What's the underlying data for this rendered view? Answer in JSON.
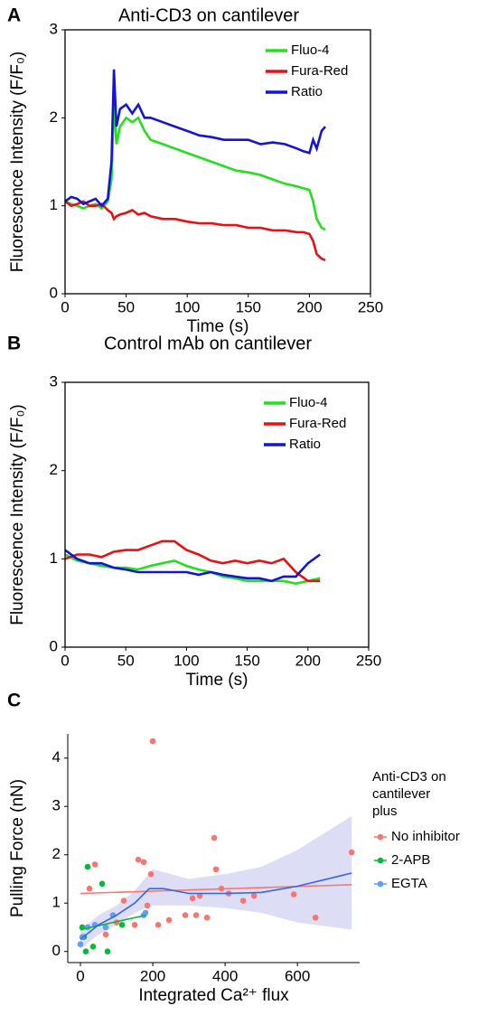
{
  "chart_data": [
    {
      "type": "line",
      "panel": "A",
      "title": "Anti-CD3 on cantilever",
      "xlabel": "Time (s)",
      "ylabel": "Fluorescence Intensity (F/F₀)",
      "xlim": [
        0,
        250
      ],
      "ylim": [
        0,
        3
      ],
      "xticks": [
        0,
        50,
        100,
        150,
        200,
        250
      ],
      "yticks": [
        0,
        1,
        2,
        3
      ],
      "legend": "upper right",
      "x": [
        0,
        5,
        10,
        15,
        20,
        25,
        30,
        35,
        38,
        40,
        42,
        45,
        50,
        55,
        60,
        65,
        70,
        80,
        90,
        100,
        110,
        120,
        130,
        140,
        150,
        160,
        170,
        180,
        190,
        195,
        200,
        203,
        206,
        210,
        213
      ],
      "series": [
        {
          "name": "Fluo-4",
          "color": "#22e01e",
          "values": [
            1.05,
            1.02,
            1.0,
            0.97,
            1.0,
            1.02,
            0.97,
            1.05,
            1.3,
            2.2,
            1.7,
            1.9,
            2.0,
            1.95,
            2.0,
            1.85,
            1.75,
            1.7,
            1.65,
            1.6,
            1.55,
            1.5,
            1.45,
            1.4,
            1.38,
            1.35,
            1.3,
            1.25,
            1.22,
            1.2,
            1.18,
            1.05,
            0.85,
            0.75,
            0.73
          ]
        },
        {
          "name": "Fura-Red",
          "color": "#e81010",
          "values": [
            1.05,
            1.0,
            1.02,
            1.05,
            1.0,
            1.0,
            1.02,
            0.95,
            0.92,
            0.85,
            0.88,
            0.9,
            0.92,
            0.95,
            0.9,
            0.92,
            0.88,
            0.85,
            0.85,
            0.82,
            0.8,
            0.8,
            0.78,
            0.78,
            0.75,
            0.75,
            0.72,
            0.72,
            0.7,
            0.7,
            0.68,
            0.6,
            0.45,
            0.4,
            0.38
          ]
        },
        {
          "name": "Ratio",
          "color": "#1414d8",
          "values": [
            1.05,
            1.1,
            1.08,
            1.02,
            1.05,
            1.08,
            1.0,
            1.08,
            1.5,
            2.55,
            1.9,
            2.1,
            2.15,
            2.05,
            2.15,
            2.0,
            2.0,
            1.95,
            1.9,
            1.85,
            1.8,
            1.78,
            1.75,
            1.75,
            1.75,
            1.7,
            1.72,
            1.7,
            1.65,
            1.62,
            1.6,
            1.75,
            1.65,
            1.85,
            1.9
          ]
        }
      ]
    },
    {
      "type": "line",
      "panel": "B",
      "title": "Control mAb on cantilever",
      "xlabel": "Time (s)",
      "ylabel": "Fluorescence Intensity (F/F₀)",
      "xlim": [
        0,
        250
      ],
      "ylim": [
        0,
        3
      ],
      "xticks": [
        0,
        50,
        100,
        150,
        200,
        250
      ],
      "yticks": [
        0,
        1,
        2,
        3
      ],
      "legend": "upper right",
      "x": [
        0,
        10,
        20,
        30,
        40,
        50,
        60,
        70,
        80,
        90,
        100,
        110,
        120,
        130,
        140,
        150,
        160,
        170,
        180,
        190,
        200,
        210
      ],
      "series": [
        {
          "name": "Fluo-4",
          "color": "#22e01e",
          "values": [
            1.05,
            0.98,
            0.95,
            0.92,
            0.9,
            0.9,
            0.88,
            0.92,
            0.95,
            0.98,
            0.92,
            0.88,
            0.85,
            0.8,
            0.78,
            0.75,
            0.75,
            0.75,
            0.75,
            0.72,
            0.75,
            0.78
          ]
        },
        {
          "name": "Fura-Red",
          "color": "#e81010",
          "values": [
            1.0,
            1.05,
            1.05,
            1.02,
            1.08,
            1.1,
            1.1,
            1.15,
            1.2,
            1.2,
            1.1,
            1.05,
            0.98,
            0.95,
            0.98,
            0.95,
            0.98,
            0.95,
            1.0,
            0.85,
            0.75,
            0.75
          ]
        },
        {
          "name": "Ratio",
          "color": "#1414d8",
          "values": [
            1.1,
            1.0,
            0.95,
            0.95,
            0.9,
            0.88,
            0.85,
            0.85,
            0.85,
            0.85,
            0.85,
            0.82,
            0.85,
            0.82,
            0.8,
            0.78,
            0.78,
            0.75,
            0.8,
            0.8,
            0.95,
            1.05
          ]
        }
      ]
    },
    {
      "type": "scatter",
      "panel": "C",
      "xlabel": "Integrated Ca²⁺ flux",
      "ylabel": "Pulling Force (nN)",
      "xlim": [
        -35,
        772
      ],
      "ylim": [
        -0.23,
        4.5
      ],
      "xticks": [
        0,
        200,
        400,
        600
      ],
      "yticks": [
        0,
        1,
        2,
        3,
        4
      ],
      "legend_title": [
        "Anti-CD3 on",
        "cantilever",
        "plus"
      ],
      "series": [
        {
          "name": "No inhibitor",
          "color": "#f8766d",
          "x": [
            25,
            40,
            70,
            100,
            120,
            150,
            160,
            175,
            185,
            195,
            200,
            215,
            245,
            290,
            310,
            320,
            330,
            350,
            370,
            375,
            390,
            410,
            450,
            480,
            590,
            650,
            750
          ],
          "values": [
            1.3,
            1.8,
            0.35,
            0.6,
            1.05,
            0.55,
            1.9,
            1.85,
            0.95,
            1.6,
            4.35,
            0.55,
            0.65,
            0.75,
            1.1,
            0.75,
            1.15,
            0.7,
            2.35,
            1.7,
            1.3,
            1.2,
            1.05,
            1.15,
            1.18,
            0.7,
            2.05
          ]
        },
        {
          "name": "2-APB",
          "color": "#00ba38",
          "x": [
            5,
            10,
            15,
            20,
            35,
            60,
            75,
            115
          ],
          "values": [
            0.5,
            0.3,
            0,
            1.75,
            0.1,
            1.4,
            0,
            0.55
          ]
        },
        {
          "name": "EGTA",
          "color": "#619cff",
          "x": [
            0,
            5,
            20,
            40,
            70,
            90,
            175,
            180
          ],
          "values": [
            0.15,
            0.3,
            0.5,
            0.55,
            0.5,
            0.75,
            0.75,
            0.8
          ]
        }
      ],
      "fits": [
        {
          "color": "#f8766d",
          "x": [
            0,
            750
          ],
          "values": [
            1.2,
            1.38
          ]
        },
        {
          "color": "#00ba38",
          "x": [
            0,
            180
          ],
          "values": [
            0.45,
            0.75
          ]
        },
        {
          "color": "#3366e8",
          "x": [
            0,
            50,
            100,
            150,
            190,
            230,
            300,
            400,
            500,
            600,
            750
          ],
          "values": [
            0.25,
            0.55,
            0.75,
            1.0,
            1.3,
            1.3,
            1.2,
            1.2,
            1.22,
            1.35,
            1.62
          ]
        }
      ],
      "ribbon": {
        "color": "#d9d9f5",
        "x": [
          0,
          50,
          100,
          150,
          200,
          300,
          400,
          500,
          600,
          750
        ],
        "lower": [
          0.05,
          0.35,
          0.55,
          0.8,
          0.95,
          0.95,
          0.9,
          0.8,
          0.6,
          0.45
        ],
        "upper": [
          0.45,
          0.75,
          0.95,
          1.25,
          1.7,
          1.5,
          1.6,
          1.75,
          2.1,
          2.8
        ]
      }
    }
  ]
}
